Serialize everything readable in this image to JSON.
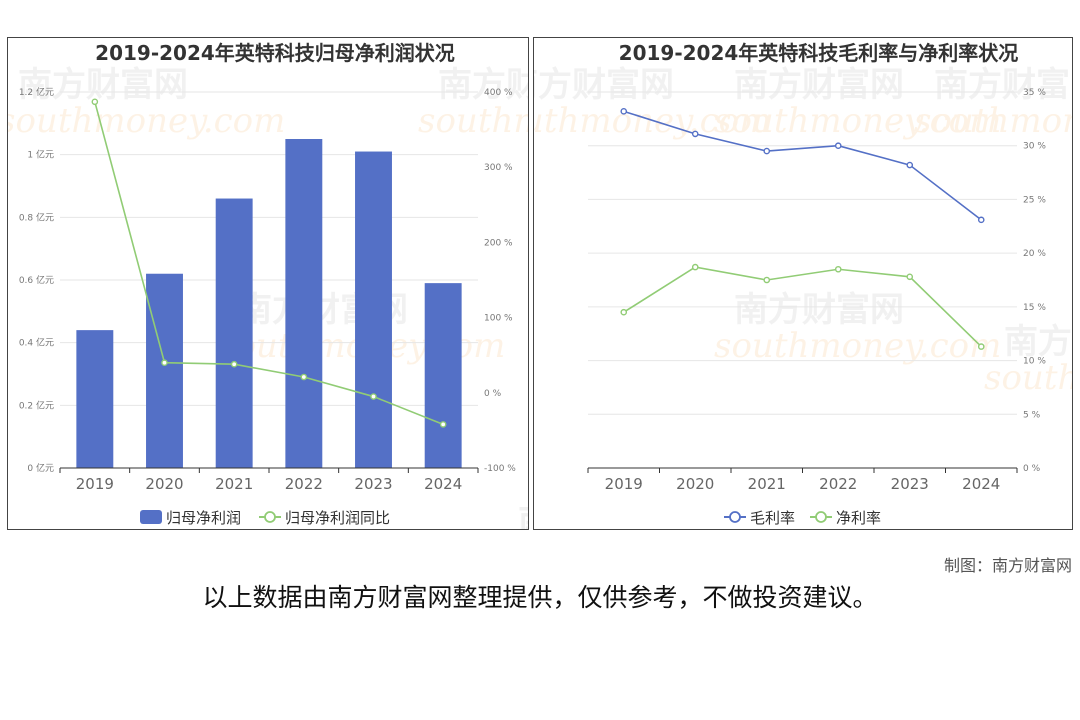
{
  "watermark": {
    "brand": "南方财富网",
    "domain": "southmoney.com"
  },
  "chart_data": [
    {
      "type": "bar",
      "title": "2019-2024年英特科技归母净利润状况",
      "categories": [
        "2019",
        "2020",
        "2021",
        "2022",
        "2023",
        "2024"
      ],
      "series": [
        {
          "name": "归母净利润",
          "type": "bar",
          "axis": "left",
          "values": [
            0.44,
            0.62,
            0.86,
            1.05,
            1.01,
            0.59
          ]
        },
        {
          "name": "归母净利润同比",
          "type": "line",
          "axis": "right",
          "values": [
            387,
            40,
            38,
            21,
            -5,
            -42
          ]
        }
      ],
      "left_axis": {
        "ylim": [
          0,
          1.2
        ],
        "ticks": [
          0,
          0.2,
          0.4,
          0.6,
          0.8,
          1,
          1.2
        ],
        "tick_labels": [
          "0 亿元",
          "0.2 亿元",
          "0.4 亿元",
          "0.6 亿元",
          "0.8 亿元",
          "1 亿元",
          "1.2 亿元"
        ]
      },
      "right_axis": {
        "ylim": [
          -100,
          400
        ],
        "ticks": [
          -100,
          0,
          100,
          200,
          300,
          400
        ],
        "tick_labels": [
          "-100 %",
          "0 %",
          "100 %",
          "200 %",
          "300 %",
          "400 %"
        ]
      },
      "colors": {
        "bar": "#5470c6",
        "line": "#91cc75"
      },
      "grid": true,
      "legend": "bottom"
    },
    {
      "type": "line",
      "title": "2019-2024年英特科技毛利率与净利率状况",
      "categories": [
        "2019",
        "2020",
        "2021",
        "2022",
        "2023",
        "2024"
      ],
      "series": [
        {
          "name": "毛利率",
          "values": [
            33.2,
            31.1,
            29.5,
            30.0,
            28.2,
            23.1
          ]
        },
        {
          "name": "净利率",
          "values": [
            14.5,
            18.7,
            17.5,
            18.5,
            17.8,
            11.3
          ]
        }
      ],
      "right_axis": {
        "ylim": [
          0,
          35
        ],
        "ticks": [
          0,
          5,
          10,
          15,
          20,
          25,
          30,
          35
        ],
        "tick_labels": [
          "0 %",
          "5 %",
          "10 %",
          "15 %",
          "20 %",
          "25 %",
          "30 %",
          "35 %"
        ]
      },
      "colors": {
        "gross": "#5470c6",
        "net": "#91cc75"
      },
      "grid": true,
      "legend": "bottom"
    }
  ],
  "footer": {
    "credit": "制图：南方财富网",
    "disclaimer": "以上数据由南方财富网整理提供，仅供参考，不做投资建议。"
  }
}
